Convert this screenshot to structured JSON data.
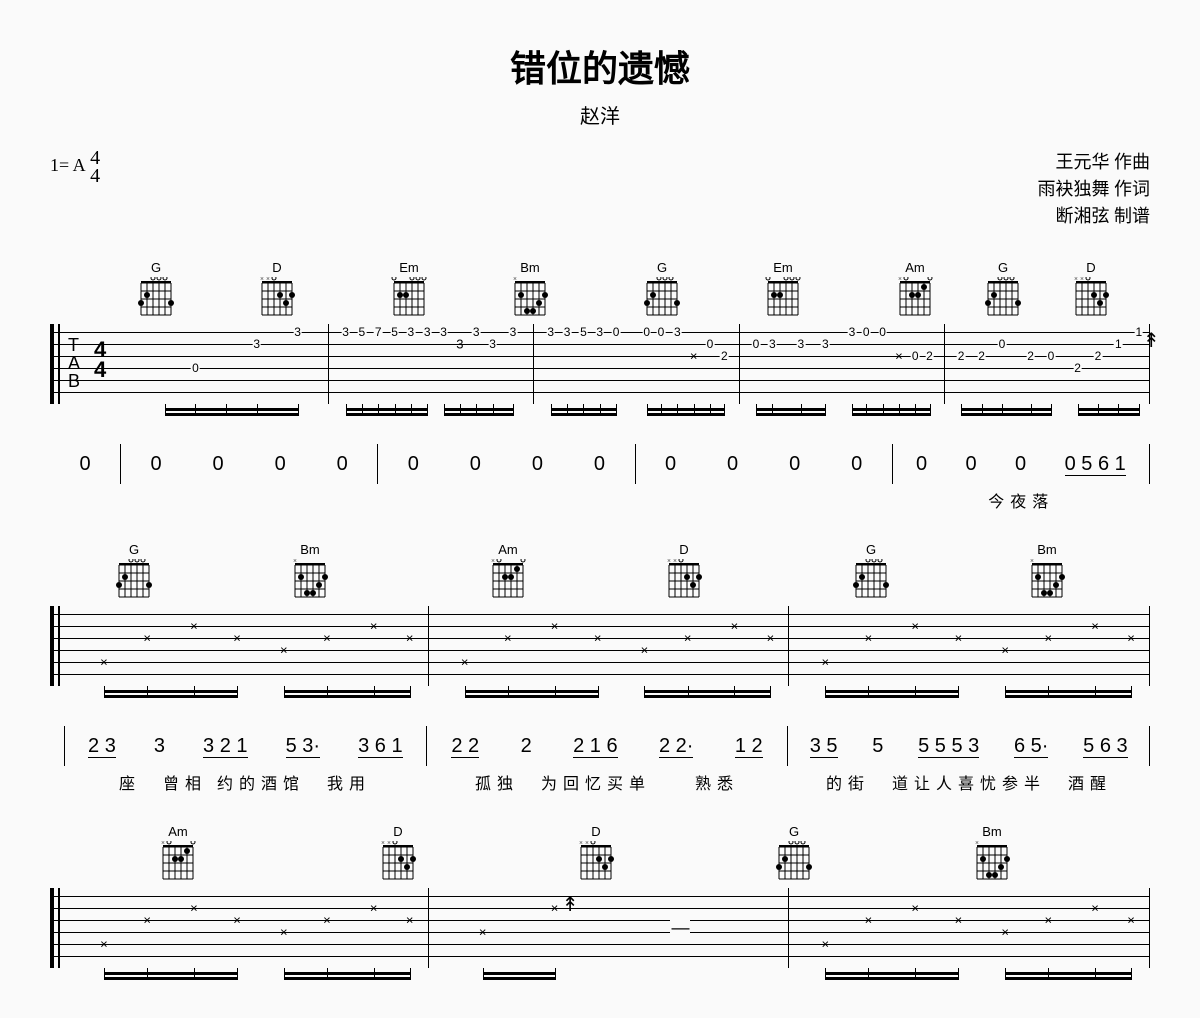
{
  "title": "错位的遗憾",
  "artist": "赵洋",
  "key_signature": "1= A",
  "time_signature": "4/4",
  "credits": {
    "composer": "王元华  作曲",
    "lyricist": "雨袂独舞  作词",
    "arranger": "断湘弦  制谱"
  },
  "chord_library": {
    "G": {
      "frets": [
        3,
        2,
        0,
        0,
        0,
        3
      ],
      "open": [
        3,
        4,
        5
      ],
      "mute": []
    },
    "D": {
      "frets": [
        -1,
        -1,
        0,
        2,
        3,
        2
      ],
      "open": [
        3
      ],
      "mute": [
        1,
        2
      ]
    },
    "Em": {
      "frets": [
        0,
        2,
        2,
        0,
        0,
        0
      ],
      "open": [
        1,
        4,
        5,
        6
      ],
      "mute": []
    },
    "Bm": {
      "frets": [
        -1,
        2,
        4,
        4,
        3,
        2
      ],
      "open": [],
      "mute": [
        1
      ]
    },
    "Am": {
      "frets": [
        -1,
        0,
        2,
        2,
        1,
        0
      ],
      "open": [
        2,
        6
      ],
      "mute": [
        1
      ]
    }
  },
  "systems": [
    {
      "has_clef": true,
      "chord_row": [
        {
          "name": "G",
          "left_pct": 8
        },
        {
          "name": "D",
          "left_pct": 19
        },
        {
          "name": "Em",
          "left_pct": 31
        },
        {
          "name": "Bm",
          "left_pct": 42
        },
        {
          "name": "G",
          "left_pct": 54
        },
        {
          "name": "Em",
          "left_pct": 65
        },
        {
          "name": "Am",
          "left_pct": 77
        },
        {
          "name": "G",
          "left_pct": 85
        },
        {
          "name": "D",
          "left_pct": 93
        }
      ],
      "measures": [
        {
          "notes": [
            {
              "string": 4,
              "fret": "0",
              "pct": 35
            },
            {
              "string": 2,
              "fret": "3",
              "pct": 65
            },
            {
              "string": 1,
              "fret": "3",
              "pct": 85
            }
          ],
          "stems": [
            20,
            35,
            50,
            65,
            85
          ],
          "beams": [
            {
              "from": 20,
              "to": 85
            }
          ]
        },
        {
          "notes": [
            {
              "string": 1,
              "fret": "3",
              "pct": 8
            },
            {
              "string": 1,
              "fret": "5",
              "pct": 16
            },
            {
              "string": 1,
              "fret": "7",
              "pct": 24
            },
            {
              "string": 1,
              "fret": "5",
              "pct": 32
            },
            {
              "string": 1,
              "fret": "3",
              "pct": 40
            },
            {
              "string": 1,
              "fret": "3",
              "pct": 48
            },
            {
              "string": 1,
              "fret": "3",
              "pct": 56
            },
            {
              "string": 2,
              "fret": "3",
              "pct": 64,
              "x": true
            },
            {
              "string": 1,
              "fret": "3",
              "pct": 72
            },
            {
              "string": 2,
              "fret": "3",
              "pct": 80
            },
            {
              "string": 1,
              "fret": "3",
              "pct": 90
            }
          ],
          "stems": [
            8,
            16,
            24,
            32,
            40,
            48,
            56,
            64,
            72,
            80,
            90
          ],
          "beams": [
            {
              "from": 8,
              "to": 48
            },
            {
              "from": 56,
              "to": 90
            }
          ]
        },
        {
          "notes": [
            {
              "string": 1,
              "fret": "3",
              "pct": 8
            },
            {
              "string": 1,
              "fret": "3",
              "pct": 16
            },
            {
              "string": 1,
              "fret": "5",
              "pct": 24
            },
            {
              "string": 1,
              "fret": "3",
              "pct": 32
            },
            {
              "string": 1,
              "fret": "0",
              "pct": 40
            },
            {
              "string": 1,
              "fret": "0",
              "pct": 55
            },
            {
              "string": 1,
              "fret": "0",
              "pct": 62
            },
            {
              "string": 1,
              "fret": "3",
              "pct": 70
            },
            {
              "string": 3,
              "fret": "×",
              "pct": 78,
              "x": true
            },
            {
              "string": 2,
              "fret": "0",
              "pct": 86
            },
            {
              "string": 3,
              "fret": "2",
              "pct": 93
            }
          ],
          "stems": [
            8,
            16,
            24,
            32,
            40,
            55,
            62,
            70,
            78,
            86,
            93
          ],
          "beams": [
            {
              "from": 8,
              "to": 40
            },
            {
              "from": 55,
              "to": 93
            }
          ]
        },
        {
          "notes": [
            {
              "string": 2,
              "fret": "0",
              "pct": 8
            },
            {
              "string": 2,
              "fret": "3",
              "pct": 16
            },
            {
              "string": 2,
              "fret": "3",
              "pct": 30
            },
            {
              "string": 2,
              "fret": "3",
              "pct": 42
            },
            {
              "string": 1,
              "fret": "3",
              "pct": 55
            },
            {
              "string": 1,
              "fret": "0",
              "pct": 62
            },
            {
              "string": 1,
              "fret": "0",
              "pct": 70
            },
            {
              "string": 3,
              "fret": "×",
              "pct": 78,
              "x": true
            },
            {
              "string": 3,
              "fret": "0",
              "pct": 86
            },
            {
              "string": 3,
              "fret": "2",
              "pct": 93
            }
          ],
          "stems": [
            8,
            16,
            30,
            42,
            55,
            62,
            70,
            78,
            86,
            93
          ],
          "beams": [
            {
              "from": 8,
              "to": 42
            },
            {
              "from": 55,
              "to": 93
            }
          ]
        },
        {
          "notes": [
            {
              "string": 3,
              "fret": "2",
              "pct": 8
            },
            {
              "string": 3,
              "fret": "2",
              "pct": 18
            },
            {
              "string": 2,
              "fret": "0",
              "pct": 28
            },
            {
              "string": 3,
              "fret": "2",
              "pct": 42
            },
            {
              "string": 3,
              "fret": "0",
              "pct": 52
            },
            {
              "string": 4,
              "fret": "2",
              "pct": 65
            },
            {
              "string": 3,
              "fret": "2",
              "pct": 75
            },
            {
              "string": 2,
              "fret": "1",
              "pct": 85
            },
            {
              "string": 1,
              "fret": "1",
              "pct": 95,
              "strum": true
            }
          ],
          "stems": [
            8,
            18,
            28,
            42,
            52,
            65,
            75,
            85,
            95
          ],
          "beams": [
            {
              "from": 8,
              "to": 52
            },
            {
              "from": 65,
              "to": 95
            }
          ]
        }
      ],
      "number_row": {
        "pre": "0",
        "measures": [
          [
            "0",
            "0",
            "0",
            "0"
          ],
          [
            "0",
            "0",
            "0",
            "0"
          ],
          [
            "0",
            "0",
            "0",
            "0"
          ],
          [
            "0",
            "0",
            "0",
            "0 5 6 1"
          ]
        ]
      },
      "lyric_row": {
        "measures": [
          "",
          "",
          "",
          "今夜落"
        ]
      }
    },
    {
      "has_clef": false,
      "chord_row": [
        {
          "name": "G",
          "left_pct": 6
        },
        {
          "name": "Bm",
          "left_pct": 22
        },
        {
          "name": "Am",
          "left_pct": 40
        },
        {
          "name": "D",
          "left_pct": 56
        },
        {
          "name": "G",
          "left_pct": 73
        },
        {
          "name": "Bm",
          "left_pct": 89
        }
      ],
      "measures": [
        {
          "notes": [
            {
              "string": 5,
              "fret": "×",
              "pct": 10,
              "x": true
            },
            {
              "string": 3,
              "fret": "×",
              "pct": 22,
              "x": true
            },
            {
              "string": 2,
              "fret": "×",
              "pct": 35,
              "x": true
            },
            {
              "string": 3,
              "fret": "×",
              "pct": 47,
              "x": true
            },
            {
              "string": 4,
              "fret": "×",
              "pct": 60,
              "x": true
            },
            {
              "string": 3,
              "fret": "×",
              "pct": 72,
              "x": true
            },
            {
              "string": 2,
              "fret": "×",
              "pct": 85,
              "x": true
            },
            {
              "string": 3,
              "fret": "×",
              "pct": 95,
              "x": true
            }
          ],
          "stems": [
            10,
            22,
            35,
            47,
            60,
            72,
            85,
            95
          ],
          "beams": [
            {
              "from": 10,
              "to": 47
            },
            {
              "from": 60,
              "to": 95
            }
          ]
        },
        {
          "notes": [
            {
              "string": 5,
              "fret": "×",
              "pct": 10,
              "x": true
            },
            {
              "string": 3,
              "fret": "×",
              "pct": 22,
              "x": true
            },
            {
              "string": 2,
              "fret": "×",
              "pct": 35,
              "x": true
            },
            {
              "string": 3,
              "fret": "×",
              "pct": 47,
              "x": true
            },
            {
              "string": 4,
              "fret": "×",
              "pct": 60,
              "x": true
            },
            {
              "string": 3,
              "fret": "×",
              "pct": 72,
              "x": true
            },
            {
              "string": 2,
              "fret": "×",
              "pct": 85,
              "x": true
            },
            {
              "string": 3,
              "fret": "×",
              "pct": 95,
              "x": true
            }
          ],
          "stems": [
            10,
            22,
            35,
            47,
            60,
            72,
            85,
            95
          ],
          "beams": [
            {
              "from": 10,
              "to": 47
            },
            {
              "from": 60,
              "to": 95
            }
          ]
        },
        {
          "notes": [
            {
              "string": 5,
              "fret": "×",
              "pct": 10,
              "x": true
            },
            {
              "string": 3,
              "fret": "×",
              "pct": 22,
              "x": true
            },
            {
              "string": 2,
              "fret": "×",
              "pct": 35,
              "x": true
            },
            {
              "string": 3,
              "fret": "×",
              "pct": 47,
              "x": true
            },
            {
              "string": 4,
              "fret": "×",
              "pct": 60,
              "x": true
            },
            {
              "string": 3,
              "fret": "×",
              "pct": 72,
              "x": true
            },
            {
              "string": 2,
              "fret": "×",
              "pct": 85,
              "x": true
            },
            {
              "string": 3,
              "fret": "×",
              "pct": 95,
              "x": true
            }
          ],
          "stems": [
            10,
            22,
            35,
            47,
            60,
            72,
            85,
            95
          ],
          "beams": [
            {
              "from": 10,
              "to": 47
            },
            {
              "from": 60,
              "to": 95
            }
          ]
        }
      ],
      "number_row": {
        "measures": [
          [
            "2 3",
            "3",
            "3 2 1",
            "5 3·",
            "3 6 1"
          ],
          [
            "2 2",
            "2",
            "2 1 6",
            "2 2·",
            "1 2"
          ],
          [
            "3 5",
            "5",
            "5 5 5 3",
            "6 5·",
            "5 6 3"
          ]
        ]
      },
      "lyric_row": {
        "measures": [
          "座　曾相 约的酒馆　我用",
          "孤独　为回忆买单　　熟悉",
          "的街　道让人喜忧参半　酒醒"
        ]
      }
    },
    {
      "has_clef": false,
      "chord_row": [
        {
          "name": "Am",
          "left_pct": 10
        },
        {
          "name": "D",
          "left_pct": 30
        },
        {
          "name": "D",
          "left_pct": 48
        },
        {
          "name": "G",
          "left_pct": 66
        },
        {
          "name": "Bm",
          "left_pct": 84
        }
      ],
      "measures": [
        {
          "notes": [
            {
              "string": 5,
              "fret": "×",
              "pct": 10,
              "x": true
            },
            {
              "string": 3,
              "fret": "×",
              "pct": 22,
              "x": true
            },
            {
              "string": 2,
              "fret": "×",
              "pct": 35,
              "x": true
            },
            {
              "string": 3,
              "fret": "×",
              "pct": 47,
              "x": true
            },
            {
              "string": 4,
              "fret": "×",
              "pct": 60,
              "x": true
            },
            {
              "string": 3,
              "fret": "×",
              "pct": 72,
              "x": true
            },
            {
              "string": 2,
              "fret": "×",
              "pct": 85,
              "x": true
            },
            {
              "string": 3,
              "fret": "×",
              "pct": 95,
              "x": true
            }
          ],
          "stems": [
            10,
            22,
            35,
            47,
            60,
            72,
            85,
            95
          ],
          "beams": [
            {
              "from": 10,
              "to": 47
            },
            {
              "from": 60,
              "to": 95
            }
          ]
        },
        {
          "notes": [
            {
              "string": 4,
              "fret": "×",
              "pct": 15,
              "x": true
            },
            {
              "string": 2,
              "fret": "×",
              "pct": 35,
              "x": true,
              "strum": true
            },
            {
              "string": 0,
              "fret": "—",
              "pct": 70
            }
          ],
          "stems": [
            15,
            35
          ],
          "beams": [
            {
              "from": 15,
              "to": 35
            }
          ]
        },
        {
          "notes": [
            {
              "string": 5,
              "fret": "×",
              "pct": 10,
              "x": true
            },
            {
              "string": 3,
              "fret": "×",
              "pct": 22,
              "x": true
            },
            {
              "string": 2,
              "fret": "×",
              "pct": 35,
              "x": true
            },
            {
              "string": 3,
              "fret": "×",
              "pct": 47,
              "x": true
            },
            {
              "string": 4,
              "fret": "×",
              "pct": 60,
              "x": true
            },
            {
              "string": 3,
              "fret": "×",
              "pct": 72,
              "x": true
            },
            {
              "string": 2,
              "fret": "×",
              "pct": 85,
              "x": true
            },
            {
              "string": 3,
              "fret": "×",
              "pct": 95,
              "x": true
            }
          ],
          "stems": [
            10,
            22,
            35,
            47,
            60,
            72,
            85,
            95
          ],
          "beams": [
            {
              "from": 10,
              "to": 47
            },
            {
              "from": 60,
              "to": 95
            }
          ]
        }
      ]
    }
  ]
}
